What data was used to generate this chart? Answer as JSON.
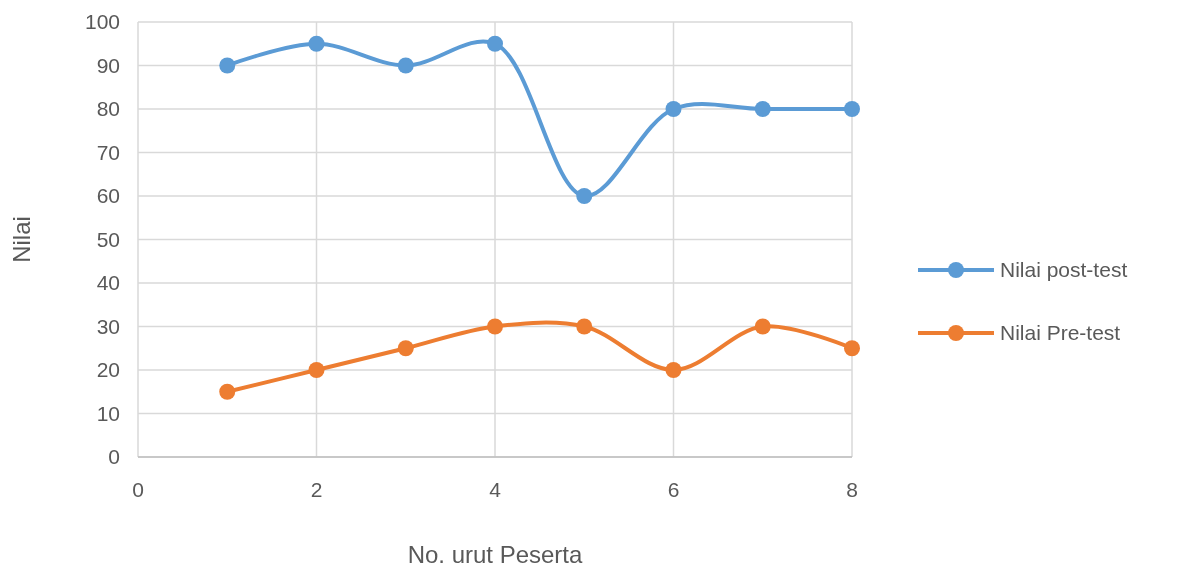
{
  "chart_data": {
    "type": "line",
    "xlabel": "No. urut Peserta",
    "ylabel": "Nilai",
    "x": [
      1,
      2,
      3,
      4,
      5,
      6,
      7,
      8
    ],
    "series": [
      {
        "name": "Nilai post-test",
        "color": "#5b9bd5",
        "values": [
          90,
          95,
          90,
          95,
          60,
          80,
          80,
          80
        ]
      },
      {
        "name": "Nilai Pre-test",
        "color": "#ed7d31",
        "values": [
          15,
          20,
          25,
          30,
          30,
          20,
          30,
          25
        ]
      }
    ],
    "xlim": [
      0,
      8
    ],
    "xticks": [
      0,
      2,
      4,
      6,
      8
    ],
    "ylim": [
      0,
      100
    ],
    "yticks": [
      0,
      10,
      20,
      30,
      40,
      50,
      60,
      70,
      80,
      90,
      100
    ],
    "grid": true,
    "legend": "right",
    "marker": "circle",
    "line_style": "solid"
  }
}
